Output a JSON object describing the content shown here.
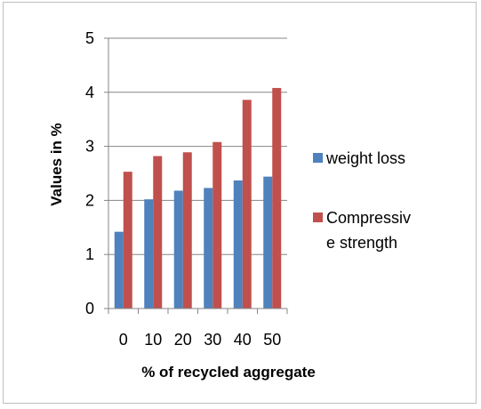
{
  "chart_data": {
    "type": "bar",
    "title": "",
    "xlabel": "% of recycled aggregate",
    "ylabel": "Values  in %",
    "categories": [
      "0",
      "10",
      "20",
      "30",
      "40",
      "50"
    ],
    "series": [
      {
        "name": "weight loss",
        "values": [
          1.42,
          2.02,
          2.18,
          2.23,
          2.37,
          2.44
        ],
        "color": "#4f81bd"
      },
      {
        "name": "Compressive strength",
        "name_lines": [
          "Compressiv",
          "e strength"
        ],
        "values": [
          2.53,
          2.82,
          2.89,
          3.08,
          3.86,
          4.08
        ],
        "color": "#c0504d"
      }
    ],
    "ylim": [
      0,
      5
    ],
    "yticks": [
      "0",
      "1",
      "2",
      "3",
      "4",
      "5"
    ],
    "grid": true,
    "legend_position": "right"
  }
}
